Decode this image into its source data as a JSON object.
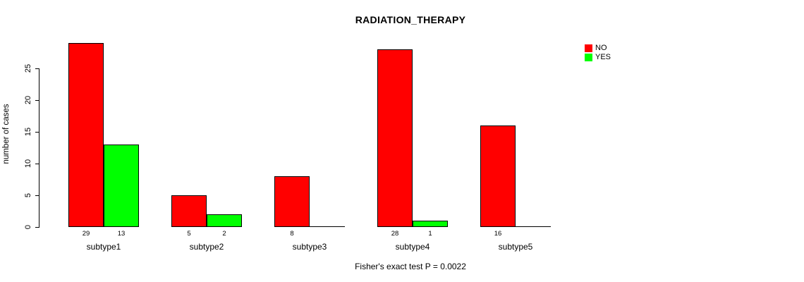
{
  "title": "RADIATION_THERAPY",
  "ylabel": "number of cases",
  "footer": "Fisher's exact test P = 0.0022",
  "colors": {
    "no": "#FF0000",
    "yes": "#00FF00",
    "axis": "#000000"
  },
  "chart_data": {
    "type": "bar",
    "title": "RADIATION_THERAPY",
    "xlabel": "",
    "ylabel": "number of cases",
    "categories": [
      "subtype1",
      "subtype2",
      "subtype3",
      "subtype4",
      "subtype5"
    ],
    "series": [
      {
        "name": "NO",
        "color": "#FF0000",
        "values": [
          29,
          5,
          8,
          28,
          16
        ]
      },
      {
        "name": "YES",
        "color": "#00FF00",
        "values": [
          13,
          2,
          0,
          1,
          0
        ]
      }
    ],
    "bar_value_labels": [
      [
        "29",
        "13"
      ],
      [
        "5",
        "2"
      ],
      [
        "8",
        ""
      ],
      [
        "28",
        "1"
      ],
      [
        "16",
        ""
      ]
    ],
    "yticks": [
      0,
      5,
      10,
      15,
      20,
      25
    ],
    "ylim": [
      0,
      29
    ],
    "grid": false,
    "legend_position": "top-right",
    "annotation": "Fisher's exact test P = 0.0022"
  }
}
